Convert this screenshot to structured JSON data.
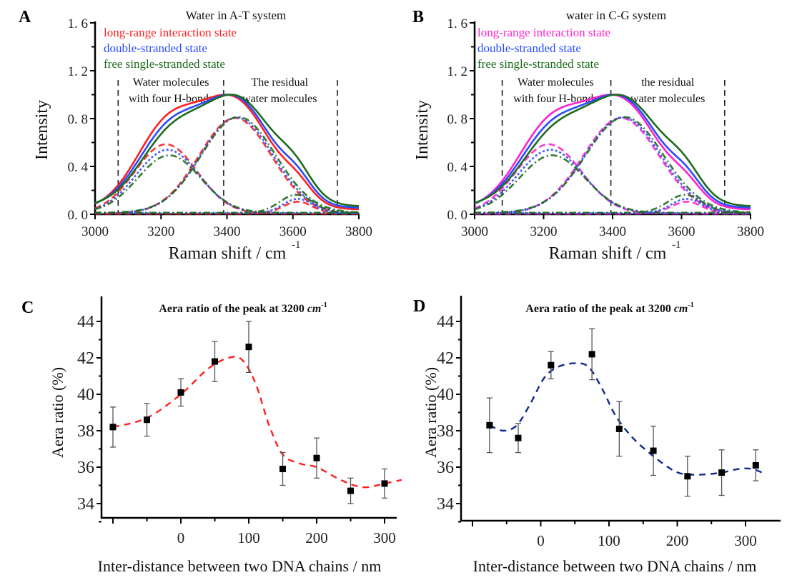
{
  "figure": {
    "panels": [
      "A",
      "B",
      "C",
      "D"
    ]
  },
  "chart_data": [
    {
      "id": "A",
      "type": "line",
      "title": "Water in A-T system",
      "xlabel": "Raman shift / cm",
      "xlabel_superscript": "-1",
      "ylabel": "Intensity",
      "xlim": [
        3000,
        3800
      ],
      "ylim": [
        0.0,
        1.6
      ],
      "xticks": [
        "3000",
        "3200",
        "3400",
        "3600",
        "3800"
      ],
      "yticks": [
        "0. 0",
        "0. 4",
        "0. 8",
        "1. 2",
        "1. 6"
      ],
      "legend_placement": "top-left",
      "region_lines_x": [
        3070,
        3390,
        3735
      ],
      "annotations": [
        {
          "lines": [
            "Water molecules",
            "with four H-bonds"
          ],
          "x": 3230
        },
        {
          "lines": [
            "The residual",
            "water molecules"
          ],
          "x": 3560
        }
      ],
      "series": [
        {
          "name": "long-range interaction state",
          "color": "#ff2020",
          "components": [
            {
              "center": 3215,
              "amp": 0.58,
              "width": 95
            },
            {
              "center": 3425,
              "amp": 0.8,
              "width": 110
            },
            {
              "center": 3615,
              "amp": 0.1,
              "width": 45
            }
          ]
        },
        {
          "name": "double-stranded state",
          "color": "#2a4cff",
          "components": [
            {
              "center": 3220,
              "amp": 0.53,
              "width": 95
            },
            {
              "center": 3430,
              "amp": 0.8,
              "width": 110
            },
            {
              "center": 3615,
              "amp": 0.12,
              "width": 45
            }
          ]
        },
        {
          "name": "free single-stranded state",
          "color": "#1e6b1e",
          "components": [
            {
              "center": 3225,
              "amp": 0.48,
              "width": 95
            },
            {
              "center": 3435,
              "amp": 0.8,
              "width": 112
            },
            {
              "center": 3610,
              "amp": 0.15,
              "width": 50
            }
          ]
        }
      ],
      "total_peak": 1.0
    },
    {
      "id": "B",
      "type": "line",
      "title": "water in C-G system",
      "xlabel": "Raman shift / cm",
      "xlabel_superscript": "-1",
      "ylabel": "Intensity",
      "xlim": [
        3000,
        3800
      ],
      "ylim": [
        0.0,
        1.6
      ],
      "xticks": [
        "3000",
        "3200",
        "3400",
        "3600",
        "3800"
      ],
      "yticks": [
        "0. 0",
        "0. 4",
        "0. 8",
        "1. 2",
        "1. 6"
      ],
      "legend_placement": "top-left",
      "region_lines_x": [
        3080,
        3395,
        3725
      ],
      "annotations": [
        {
          "lines": [
            "Water molecules",
            "with four H-bonds"
          ],
          "x": 3235
        },
        {
          "lines": [
            "the residual",
            "water molecules"
          ],
          "x": 3560
        }
      ],
      "series": [
        {
          "name": "long-range interaction state",
          "color": "#ff22cc",
          "components": [
            {
              "center": 3215,
              "amp": 0.58,
              "width": 95
            },
            {
              "center": 3425,
              "amp": 0.8,
              "width": 110
            },
            {
              "center": 3615,
              "amp": 0.1,
              "width": 45
            }
          ]
        },
        {
          "name": "double-stranded state",
          "color": "#2a4cff",
          "components": [
            {
              "center": 3220,
              "amp": 0.53,
              "width": 95
            },
            {
              "center": 3430,
              "amp": 0.8,
              "width": 110
            },
            {
              "center": 3615,
              "amp": 0.12,
              "width": 45
            }
          ]
        },
        {
          "name": "free single-stranded state",
          "color": "#1e6b1e",
          "components": [
            {
              "center": 3225,
              "amp": 0.48,
              "width": 95
            },
            {
              "center": 3435,
              "amp": 0.8,
              "width": 112
            },
            {
              "center": 3610,
              "amp": 0.15,
              "width": 50
            }
          ]
        }
      ],
      "total_peak": 1.0
    },
    {
      "id": "C",
      "type": "scatter",
      "title": "Aera ratio of the peak at 3200 ",
      "title_unit": "cm",
      "title_superscript": "-1",
      "xlabel": "Inter-distance between two DNA chains / nm",
      "ylabel": "Aera ratio (%)",
      "xlim": [
        -115,
        335
      ],
      "ylim": [
        33,
        45
      ],
      "xticks": [
        "",
        "",
        "0",
        "",
        "100",
        "",
        "200",
        "",
        "300"
      ],
      "xtick_values": [
        -100,
        -50,
        0,
        50,
        100,
        150,
        200,
        250,
        300
      ],
      "yticks": [
        "34",
        "36",
        "38",
        "40",
        "42",
        "44"
      ],
      "fit_color": "#ff2020",
      "points": [
        {
          "x": -100,
          "y": 38.2,
          "err": 1.1
        },
        {
          "x": -50,
          "y": 38.6,
          "err": 0.9
        },
        {
          "x": 0,
          "y": 40.1,
          "err": 0.75
        },
        {
          "x": 50,
          "y": 41.8,
          "err": 1.1
        },
        {
          "x": 100,
          "y": 42.6,
          "err": 1.4
        },
        {
          "x": 150,
          "y": 35.9,
          "err": 0.9
        },
        {
          "x": 200,
          "y": 36.5,
          "err": 1.1
        },
        {
          "x": 250,
          "y": 34.7,
          "err": 0.7
        },
        {
          "x": 300,
          "y": 35.1,
          "err": 0.8
        }
      ],
      "fit_curve": [
        [
          -100,
          38.2
        ],
        [
          -50,
          38.7
        ],
        [
          0,
          40.0
        ],
        [
          40,
          41.4
        ],
        [
          70,
          42.0
        ],
        [
          90,
          41.9
        ],
        [
          110,
          40.6
        ],
        [
          130,
          38.3
        ],
        [
          150,
          36.7
        ],
        [
          175,
          36.2
        ],
        [
          200,
          36.0
        ],
        [
          230,
          35.4
        ],
        [
          255,
          35.0
        ],
        [
          275,
          34.9
        ],
        [
          300,
          35.1
        ],
        [
          325,
          35.3
        ]
      ]
    },
    {
      "id": "D",
      "type": "scatter",
      "title": "Aera ratio of the peak at 3200 ",
      "title_unit": "cm",
      "title_superscript": "-1",
      "xlabel": "Inter-distance between two DNA chains / nm",
      "ylabel": "Aera ratio (%)",
      "xlim": [
        -110,
        340
      ],
      "ylim": [
        33,
        45
      ],
      "xticks": [
        "",
        "",
        "0",
        "",
        "100",
        "",
        "200",
        "",
        "300"
      ],
      "xtick_values": [
        -100,
        -50,
        0,
        50,
        100,
        150,
        200,
        250,
        300
      ],
      "yticks": [
        "34",
        "36",
        "38",
        "40",
        "42",
        "44"
      ],
      "fit_color": "#0d2a8a",
      "points": [
        {
          "x": -75,
          "y": 38.3,
          "err": 1.5
        },
        {
          "x": -33,
          "y": 37.6,
          "err": 0.8
        },
        {
          "x": 15,
          "y": 41.6,
          "err": 0.75
        },
        {
          "x": 75,
          "y": 42.2,
          "err": 1.4
        },
        {
          "x": 115,
          "y": 38.1,
          "err": 1.5
        },
        {
          "x": 165,
          "y": 36.9,
          "err": 1.35
        },
        {
          "x": 215,
          "y": 35.5,
          "err": 1.1
        },
        {
          "x": 265,
          "y": 35.7,
          "err": 1.25
        },
        {
          "x": 315,
          "y": 36.1,
          "err": 0.85
        }
      ],
      "fit_curve": [
        [
          -75,
          38.3
        ],
        [
          -55,
          38.0
        ],
        [
          -35,
          38.3
        ],
        [
          -15,
          39.5
        ],
        [
          5,
          40.9
        ],
        [
          25,
          41.5
        ],
        [
          50,
          41.7
        ],
        [
          70,
          41.5
        ],
        [
          90,
          40.3
        ],
        [
          110,
          38.8
        ],
        [
          135,
          37.6
        ],
        [
          165,
          36.6
        ],
        [
          195,
          35.8
        ],
        [
          215,
          35.6
        ],
        [
          240,
          35.6
        ],
        [
          265,
          35.7
        ],
        [
          290,
          35.9
        ],
        [
          310,
          35.9
        ],
        [
          330,
          35.6
        ]
      ]
    }
  ]
}
